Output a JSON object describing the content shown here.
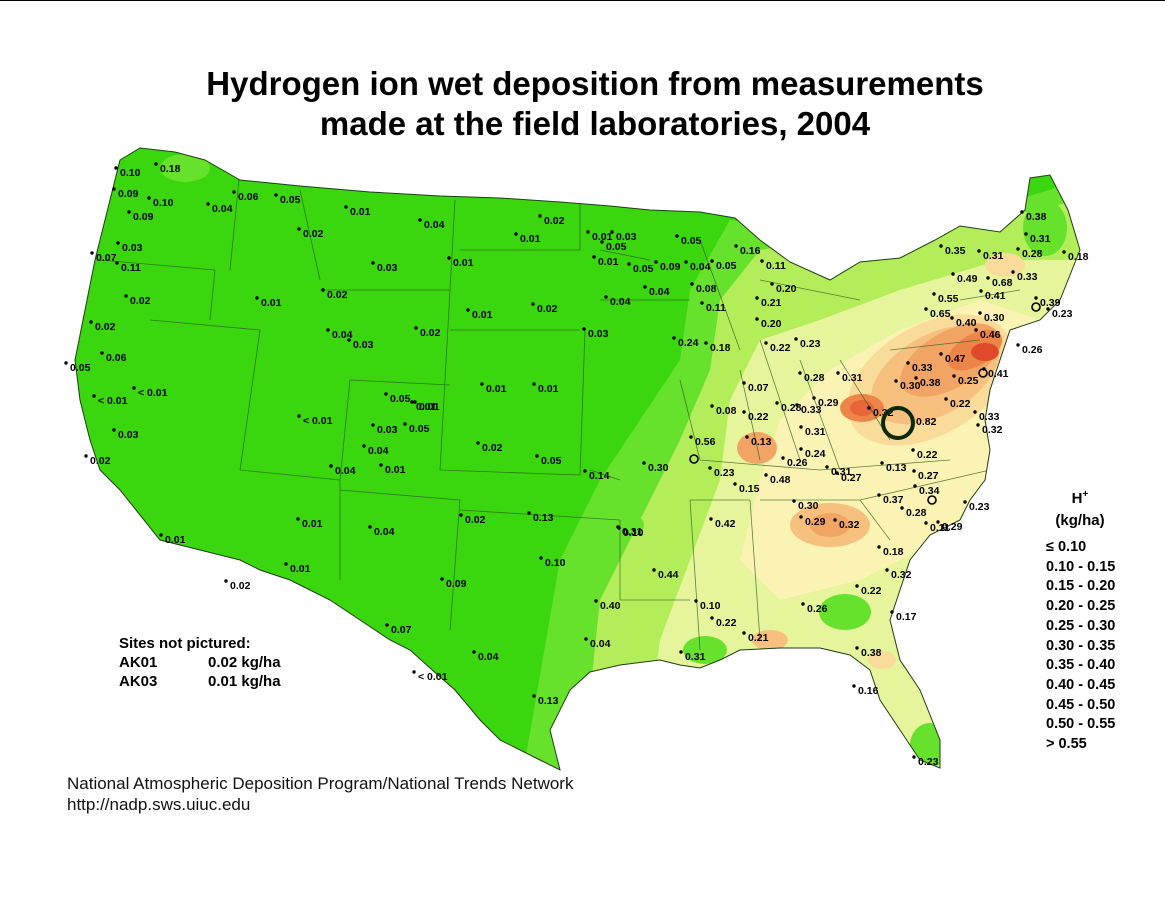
{
  "title_line1": "Hydrogen ion wet deposition from measurements",
  "title_line2": "made at the field laboratories, 2004",
  "legend": {
    "title": "H",
    "title_sup": "+",
    "unit": "(kg/ha)",
    "classes": [
      "≤ 0.10",
      "0.10 - 0.15",
      "0.15 - 0.20",
      "0.20 - 0.25",
      "0.25 - 0.30",
      "0.30 - 0.35",
      "0.35 - 0.40",
      "0.40 - 0.45",
      "0.45 - 0.50",
      "0.50 - 0.55",
      "> 0.55"
    ],
    "colors": [
      "#3ad60e",
      "#66e22c",
      "#b4ed5a",
      "#e6f59b",
      "#fbf3b4",
      "#f9dc9a",
      "#f7c07e",
      "#f2a464",
      "#ee8548",
      "#e8663a",
      "#e04a2a"
    ]
  },
  "not_pictured": {
    "heading": "Sites not pictured:",
    "rows": [
      {
        "site": "AK01",
        "value": "0.02 kg/ha"
      },
      {
        "site": "AK03",
        "value": "0.01 kg/ha"
      }
    ]
  },
  "credit": {
    "line1": "National Atmospheric Deposition Program/National Trends Network",
    "line2": "http://nadp.sws.uiuc.edu"
  },
  "site_labels": [
    "0.10",
    "0.18",
    "0.09",
    "0.10",
    "0.09",
    "0.03",
    "0.07",
    "0.11",
    "0.02",
    "0.02",
    "0.06",
    "0.05",
    "< 0.01",
    "< 0.01",
    "0.03",
    "0.02",
    "0.01",
    "0.01",
    "0.02",
    "0.04",
    "0.06",
    "0.04",
    "0.05",
    "0.01",
    "0.01",
    "0.02",
    "0.03",
    "0.01",
    "0.02",
    "0.03",
    "0.04",
    "0.02",
    "0.01",
    "0.01",
    "0.01",
    "0.02",
    "0.01",
    "0.03",
    "< 0.01",
    "0.05",
    "0.01",
    "0.03",
    "0.04",
    "0.05",
    "0.01",
    "0.04",
    "0.02",
    "0.05",
    "0.01",
    "0.04",
    "0.01",
    "0.02",
    "0.07",
    "< 0.01",
    "0.04",
    "0.09",
    "0.02",
    "0.04",
    "0.13",
    "0.13",
    "0.10",
    "0.14",
    "0.10",
    "0.01",
    "0.03",
    "0.05",
    "0.04",
    "0.01",
    "0.05",
    "0.04",
    "0.09",
    "0.05",
    "0.04",
    "0.05",
    "0.08",
    "0.11",
    "0.16",
    "0.11",
    "0.20",
    "0.21",
    "0.20",
    "0.22",
    "0.23",
    "0.24",
    "0.18",
    "0.07",
    "0.08",
    "0.22",
    "0.28",
    "0.28",
    "0.31",
    "0.33",
    "0.31",
    "0.29",
    "0.32",
    "0.82",
    "0.56",
    "0.30",
    "0.13",
    "0.23",
    "0.15",
    "0.48",
    "0.26",
    "0.24",
    "0.31",
    "0.30",
    "0.29",
    "0.32",
    "0.31",
    "0.42",
    "0.44",
    "0.40",
    "0.10",
    "0.22",
    "0.31",
    "0.21",
    "0.26",
    "0.22",
    "0.17",
    "0.38",
    "0.16",
    "0.23",
    "0.18",
    "0.32",
    "0.37",
    "0.28",
    "0.11",
    "0.29",
    "0.23",
    "0.34",
    "0.27",
    "0.13",
    "0.22",
    "0.27",
    "0.22",
    "0.33",
    "0.32",
    "0.41",
    "0.30",
    "0.38",
    "0.25",
    "0.33",
    "0.47",
    "0.46",
    "0.40",
    "0.30",
    "0.65",
    "0.55",
    "0.41",
    "0.68",
    "0.49",
    "0.35",
    "0.31",
    "0.28",
    "0.33",
    "0.38",
    "0.31",
    "0.18",
    "0.39",
    "0.23",
    "0.26",
    "0.15",
    "0.05",
    "0.25",
    "0.37",
    "0.24",
    "0.28"
  ]
}
